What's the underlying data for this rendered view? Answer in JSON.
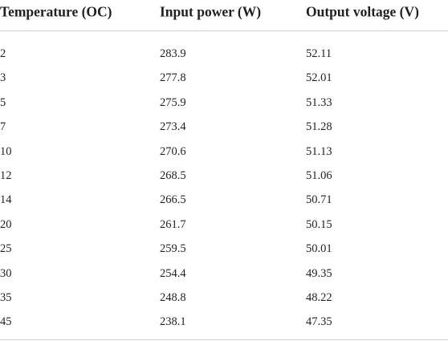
{
  "table": {
    "header": [
      "Temperature (OC)",
      "Input power (W)",
      "Output voltage (V)"
    ],
    "rows": [
      [
        "2",
        "283.9",
        "52.11"
      ],
      [
        "3",
        "277.8",
        "52.01"
      ],
      [
        "5",
        "275.9",
        "51.33"
      ],
      [
        "7",
        "273.4",
        "51.28"
      ],
      [
        "10",
        "270.6",
        "51.13"
      ],
      [
        "12",
        "268.5",
        "51.06"
      ],
      [
        "14",
        "266.5",
        "50.71"
      ],
      [
        "20",
        "261.7",
        "50.15"
      ],
      [
        "25",
        "259.5",
        "50.01"
      ],
      [
        "30",
        "254.4",
        "49.35"
      ],
      [
        "35",
        "248.8",
        "48.22"
      ],
      [
        "45",
        "238.1",
        "47.35"
      ]
    ]
  }
}
